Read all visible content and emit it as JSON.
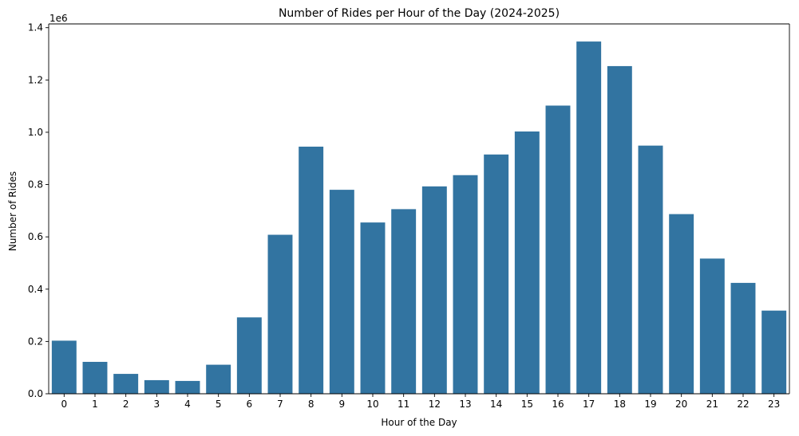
{
  "chart_data": {
    "type": "bar",
    "title": "Number of Rides per Hour of the Day (2024-2025)",
    "xlabel": "Hour of the Day",
    "ylabel": "Number of Rides",
    "y_scale_label": "1e6",
    "categories": [
      "0",
      "1",
      "2",
      "3",
      "4",
      "5",
      "6",
      "7",
      "8",
      "9",
      "10",
      "11",
      "12",
      "13",
      "14",
      "15",
      "16",
      "17",
      "18",
      "19",
      "20",
      "21",
      "22",
      "23"
    ],
    "values": [
      203000,
      122000,
      76000,
      52000,
      49000,
      111000,
      292000,
      608000,
      945000,
      780000,
      655000,
      706000,
      793000,
      836000,
      915000,
      1003000,
      1102000,
      1347000,
      1253000,
      949000,
      687000,
      517000,
      424000,
      318000
    ],
    "ylim": [
      0,
      1414350
    ],
    "yticks": [
      0,
      200000,
      400000,
      600000,
      800000,
      1000000,
      1200000,
      1400000
    ],
    "ytick_labels": [
      "0.0",
      "0.2",
      "0.4",
      "0.6",
      "0.8",
      "1.0",
      "1.2",
      "1.4"
    ],
    "bar_color": "#3274a1",
    "grid": false,
    "legend": null
  }
}
